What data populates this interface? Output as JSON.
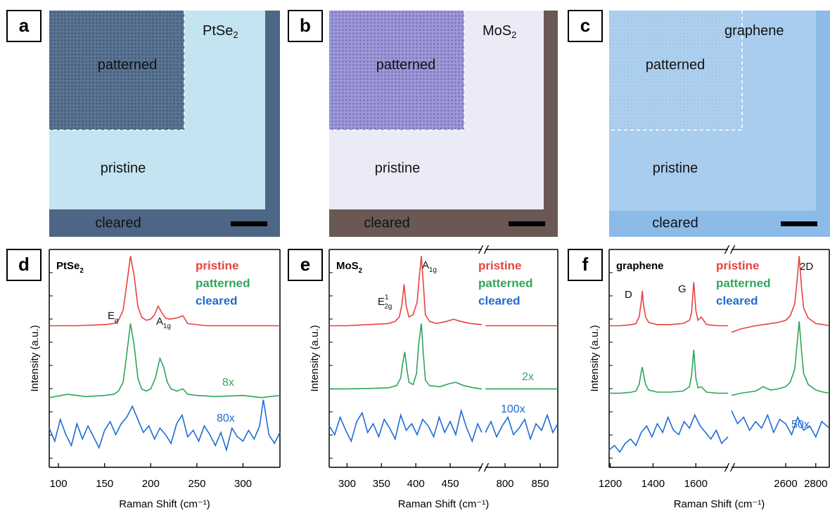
{
  "images": [
    {
      "label": "a",
      "material": {
        "base": "PtSe",
        "sub": "2"
      },
      "patterned": "patterned",
      "pristine": "pristine",
      "cleared": "cleared"
    },
    {
      "label": "b",
      "material": {
        "base": "MoS",
        "sub": "2"
      },
      "patterned": "patterned",
      "pristine": "pristine",
      "cleared": "cleared"
    },
    {
      "label": "c",
      "material": {
        "base": "graphene"
      },
      "patterned": "patterned",
      "pristine": "pristine",
      "cleared": "cleared"
    }
  ],
  "chart_data": [
    {
      "type": "line",
      "label": "d",
      "sample": {
        "base": "PtSe",
        "sub": "2"
      },
      "xlabel": "Raman Shift (cm⁻¹)",
      "ylabel": "Intensity (a.u.)",
      "xlim": [
        90,
        340
      ],
      "xticks": [
        100,
        150,
        200,
        250,
        300
      ],
      "ylim": [
        0,
        10
      ],
      "peaks": [
        {
          "base": "E",
          "sub": "g"
        },
        {
          "base": "A",
          "sub": "1g"
        }
      ],
      "series": [
        {
          "name": "pristine",
          "color": "#e8423d",
          "x": [
            90,
            120,
            150,
            160,
            165,
            170,
            174,
            178,
            182,
            186,
            190,
            195,
            200,
            204,
            208,
            212,
            216,
            220,
            228,
            235,
            240,
            260,
            300,
            340
          ],
          "values": [
            6.5,
            6.5,
            6.55,
            6.6,
            6.75,
            7.2,
            8.4,
            9.7,
            8.8,
            7.4,
            6.9,
            6.75,
            6.8,
            7.0,
            7.4,
            7.1,
            6.85,
            6.8,
            6.85,
            6.95,
            6.6,
            6.5,
            6.5,
            6.5
          ]
        },
        {
          "name": "patterned",
          "color": "#2ea55a",
          "label": "8x",
          "x": [
            90,
            110,
            130,
            150,
            160,
            165,
            170,
            174,
            178,
            182,
            186,
            190,
            195,
            200,
            205,
            210,
            214,
            218,
            222,
            228,
            235,
            240,
            250,
            270,
            300,
            320,
            340
          ],
          "values": [
            3.2,
            3.35,
            3.25,
            3.3,
            3.35,
            3.5,
            3.9,
            5.2,
            6.6,
            5.6,
            4.1,
            3.6,
            3.5,
            3.6,
            4.1,
            5.0,
            4.6,
            3.9,
            3.6,
            3.5,
            3.6,
            3.35,
            3.3,
            3.25,
            3.3,
            3.2,
            3.3
          ]
        },
        {
          "name": "cleared",
          "color": "#1f6bd4",
          "label": "80x",
          "x": [
            90,
            96,
            102,
            108,
            114,
            120,
            126,
            132,
            138,
            144,
            150,
            156,
            162,
            168,
            174,
            180,
            186,
            192,
            198,
            204,
            210,
            216,
            222,
            228,
            234,
            240,
            246,
            252,
            258,
            264,
            270,
            276,
            282,
            288,
            294,
            300,
            306,
            312,
            318,
            322,
            328,
            334,
            340
          ],
          "values": [
            1.8,
            1.2,
            2.2,
            1.5,
            1.0,
            2.0,
            1.3,
            1.9,
            1.4,
            0.9,
            1.7,
            2.1,
            1.5,
            2.0,
            2.3,
            2.8,
            2.2,
            1.6,
            1.9,
            1.3,
            1.8,
            1.5,
            1.1,
            2.0,
            2.4,
            1.4,
            1.7,
            1.2,
            1.9,
            1.5,
            1.0,
            1.6,
            0.8,
            1.8,
            1.4,
            1.2,
            1.7,
            1.3,
            1.9,
            3.1,
            1.5,
            1.1,
            1.6
          ]
        }
      ]
    },
    {
      "type": "line",
      "label": "e",
      "sample": {
        "base": "MoS",
        "sub": "2"
      },
      "xlabel": "Raman Shift (cm⁻¹)",
      "ylabel": "Intensity (a.u.)",
      "xlim": [
        [
          274,
          496
        ],
        [
          772,
          875
        ]
      ],
      "xticks": [
        300,
        350,
        400,
        450,
        800,
        850
      ],
      "ylim": [
        0,
        10
      ],
      "peaks": [
        {
          "base": "E",
          "sub": "2g",
          "sup": "1"
        },
        {
          "base": "A",
          "sub": "1g"
        }
      ],
      "series": [
        {
          "name": "pristine",
          "color": "#e8423d",
          "x": [
            274,
            300,
            330,
            360,
            370,
            376,
            380,
            383,
            386,
            390,
            396,
            402,
            405,
            408,
            411,
            414,
            420,
            430,
            445,
            455,
            465,
            480,
            496,
            null,
            772,
            800,
            830,
            860,
            875
          ],
          "values": [
            6.5,
            6.5,
            6.55,
            6.6,
            6.7,
            6.9,
            7.5,
            8.4,
            7.4,
            6.9,
            7.0,
            7.6,
            8.7,
            9.7,
            8.4,
            7.0,
            6.7,
            6.6,
            6.7,
            6.8,
            6.7,
            6.6,
            6.55,
            null,
            6.5,
            6.5,
            6.5,
            6.5,
            6.5
          ]
        },
        {
          "name": "patterned",
          "color": "#2ea55a",
          "label": "2x",
          "x": [
            274,
            300,
            330,
            360,
            372,
            378,
            381,
            384,
            387,
            390,
            396,
            401,
            404,
            408,
            411,
            414,
            420,
            435,
            450,
            458,
            470,
            485,
            496,
            null,
            772,
            800,
            830,
            860,
            875
          ],
          "values": [
            3.6,
            3.6,
            3.62,
            3.65,
            3.75,
            4.1,
            4.8,
            5.3,
            4.5,
            3.9,
            3.8,
            4.3,
            5.6,
            6.6,
            5.2,
            4.0,
            3.75,
            3.7,
            3.85,
            3.9,
            3.75,
            3.65,
            3.6,
            null,
            3.6,
            3.6,
            3.6,
            3.6,
            3.6
          ]
        },
        {
          "name": "cleared",
          "color": "#1f6bd4",
          "label": "100x",
          "x": [
            274,
            282,
            290,
            298,
            306,
            314,
            322,
            330,
            338,
            346,
            354,
            362,
            370,
            378,
            386,
            394,
            402,
            410,
            418,
            426,
            434,
            442,
            450,
            458,
            466,
            474,
            482,
            490,
            496,
            null,
            772,
            780,
            788,
            796,
            804,
            812,
            820,
            828,
            836,
            844,
            852,
            860,
            868,
            875
          ],
          "values": [
            1.9,
            1.5,
            2.3,
            1.7,
            1.2,
            2.1,
            2.5,
            1.6,
            2.0,
            1.4,
            2.2,
            1.8,
            1.3,
            2.4,
            1.7,
            2.0,
            1.5,
            2.2,
            1.9,
            1.4,
            2.3,
            1.6,
            2.1,
            1.5,
            2.6,
            1.8,
            1.2,
            2.0,
            1.6,
            null,
            1.6,
            2.1,
            1.4,
            1.9,
            2.3,
            1.5,
            1.8,
            2.2,
            1.3,
            2.0,
            1.7,
            2.4,
            1.6,
            2.0
          ]
        }
      ]
    },
    {
      "type": "line",
      "label": "f",
      "sample": {
        "base": "graphene"
      },
      "xlabel": "Raman Shift (cm⁻¹)",
      "ylabel": "Intensity (a.u.)",
      "xlim": [
        [
          1195,
          1750
        ],
        [
          2240,
          2890
        ]
      ],
      "xticks": [
        1200,
        1400,
        1600,
        2600,
        2800
      ],
      "ylim": [
        0,
        10
      ],
      "peaks": [
        {
          "base": "D"
        },
        {
          "base": "G"
        },
        {
          "base": "2D"
        }
      ],
      "series": [
        {
          "name": "pristine",
          "color": "#e8423d",
          "x": [
            1195,
            1250,
            1300,
            1320,
            1335,
            1345,
            1350,
            1355,
            1365,
            1380,
            1420,
            1480,
            1540,
            1570,
            1580,
            1590,
            1600,
            1610,
            1625,
            1650,
            1700,
            1750,
            null,
            2240,
            2300,
            2400,
            2450,
            2500,
            2550,
            2600,
            2630,
            2660,
            2675,
            2690,
            2705,
            2720,
            2750,
            2800,
            2850,
            2890
          ],
          "values": [
            6.5,
            6.5,
            6.55,
            6.6,
            6.9,
            7.6,
            8.1,
            7.5,
            6.9,
            6.65,
            6.55,
            6.55,
            6.6,
            6.75,
            7.1,
            8.5,
            7.2,
            6.75,
            6.9,
            6.55,
            6.5,
            6.5,
            null,
            6.2,
            6.35,
            6.5,
            6.55,
            6.6,
            6.65,
            6.75,
            6.95,
            7.5,
            8.5,
            9.7,
            8.3,
            7.3,
            6.85,
            6.6,
            6.55,
            6.5
          ]
        },
        {
          "name": "patterned",
          "color": "#2ea55a",
          "x": [
            1195,
            1250,
            1300,
            1320,
            1335,
            1345,
            1350,
            1355,
            1365,
            1380,
            1420,
            1480,
            1540,
            1570,
            1580,
            1590,
            1600,
            1610,
            1625,
            1650,
            1700,
            1750,
            null,
            2240,
            2300,
            2400,
            2450,
            2500,
            2550,
            2600,
            2630,
            2660,
            2675,
            2690,
            2705,
            2720,
            2750,
            2800,
            2850,
            2890
          ],
          "values": [
            3.4,
            3.4,
            3.45,
            3.5,
            3.8,
            4.4,
            4.6,
            4.3,
            3.8,
            3.55,
            3.45,
            3.45,
            3.5,
            3.7,
            4.2,
            5.4,
            4.1,
            3.65,
            3.7,
            3.45,
            3.4,
            3.4,
            null,
            3.3,
            3.4,
            3.5,
            3.7,
            3.55,
            3.6,
            3.7,
            3.9,
            4.5,
            5.6,
            6.7,
            5.4,
            4.3,
            3.8,
            3.55,
            3.45,
            3.4
          ]
        },
        {
          "name": "cleared",
          "color": "#1f6bd4",
          "label": "50x",
          "x": [
            1195,
            1220,
            1245,
            1270,
            1295,
            1320,
            1345,
            1370,
            1395,
            1420,
            1445,
            1470,
            1495,
            1520,
            1545,
            1570,
            1595,
            1620,
            1645,
            1670,
            1695,
            1720,
            1750,
            null,
            2240,
            2280,
            2320,
            2360,
            2400,
            2440,
            2480,
            2520,
            2560,
            2600,
            2640,
            2680,
            2720,
            2760,
            2800,
            2840,
            2890
          ],
          "values": [
            0.8,
            1.0,
            0.7,
            1.1,
            1.3,
            1.0,
            1.6,
            1.9,
            1.4,
            2.0,
            1.6,
            2.3,
            1.7,
            1.5,
            2.1,
            1.8,
            2.4,
            1.9,
            1.6,
            1.3,
            1.7,
            1.1,
            1.4,
            null,
            2.6,
            2.0,
            2.3,
            1.7,
            2.1,
            1.8,
            2.4,
            1.6,
            2.2,
            2.0,
            1.5,
            2.3,
            1.7,
            1.9,
            1.4,
            2.1,
            1.8
          ]
        }
      ]
    }
  ]
}
